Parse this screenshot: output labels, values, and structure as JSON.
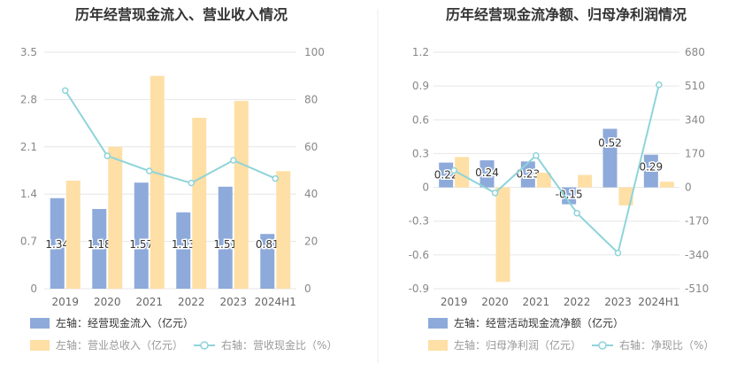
{
  "chart_data": [
    {
      "type": "bar",
      "title": "历年经营现金流入、营业收入情况",
      "categories": [
        "2019",
        "2020",
        "2021",
        "2022",
        "2023",
        "2024H1"
      ],
      "y_left": {
        "ticks": [
          "0",
          "0.7",
          "1.4",
          "2.1",
          "2.8",
          "3.5"
        ],
        "range": [
          0,
          3.5
        ]
      },
      "y_right": {
        "ticks": [
          "0",
          "20",
          "40",
          "60",
          "80",
          "100"
        ],
        "range": [
          0,
          100
        ]
      },
      "series": [
        {
          "name": "左轴：经营现金流入（亿元）",
          "type": "bar",
          "axis": "left",
          "color": "#8eaadb",
          "values": [
            1.34,
            1.18,
            1.57,
            1.13,
            1.51,
            0.81
          ],
          "labels": [
            "1.34",
            "1.18",
            "1.57",
            "1.13",
            "1.51",
            "0.81"
          ]
        },
        {
          "name": "左轴：营业总收入（亿元）",
          "type": "bar",
          "axis": "left",
          "color": "#fedfa5",
          "values": [
            1.6,
            2.1,
            3.15,
            2.53,
            2.78,
            1.74
          ]
        },
        {
          "name": "右轴：营收现金比（%）",
          "type": "line",
          "axis": "right",
          "color": "#8ed4d9",
          "values": [
            83.8,
            56.2,
            49.8,
            44.7,
            54.3,
            46.6
          ]
        }
      ],
      "grid": true,
      "legend_position": "bottom-left"
    },
    {
      "type": "bar",
      "title": "历年经营现金流净额、归母净利润情况",
      "categories": [
        "2019",
        "2020",
        "2021",
        "2022",
        "2023",
        "2024H1"
      ],
      "y_left": {
        "ticks": [
          "-0.9",
          "-0.6",
          "-0.3",
          "0",
          "0.3",
          "0.6",
          "0.9",
          "1.2"
        ],
        "range": [
          -0.9,
          1.2
        ]
      },
      "y_right": {
        "ticks": [
          "-510",
          "-340",
          "-170",
          "0",
          "170",
          "340",
          "510",
          "680"
        ],
        "range": [
          -510,
          680
        ]
      },
      "series": [
        {
          "name": "左轴：经营活动现金流净额（亿元）",
          "type": "bar",
          "axis": "left",
          "color": "#8eaadb",
          "values": [
            0.22,
            0.24,
            0.23,
            -0.15,
            0.52,
            0.29
          ],
          "labels": [
            "0.22",
            "0.24",
            "0.23",
            "-0.15",
            "0.52",
            "0.29"
          ]
        },
        {
          "name": "左轴：归母净利润（亿元）",
          "type": "bar",
          "axis": "left",
          "color": "#fedfa5",
          "values": [
            0.27,
            -0.84,
            0.13,
            0.11,
            -0.16,
            0.05
          ]
        },
        {
          "name": "右轴：净现比（%）",
          "type": "line",
          "axis": "right",
          "color": "#8ed4d9",
          "values": [
            85,
            -28,
            160,
            -130,
            -330,
            516
          ]
        }
      ],
      "grid": true,
      "legend_position": "bottom-left"
    }
  ]
}
